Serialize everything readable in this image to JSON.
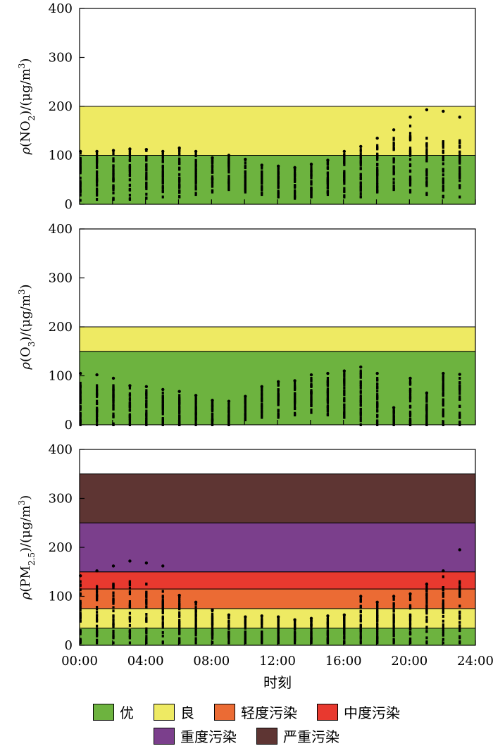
{
  "colors": {
    "优": "#6db33f",
    "良": "#eeea63",
    "轻度污染": "#eb6b34",
    "中度污染": "#e8392f",
    "重度污染": "#7b3f8c",
    "严重污染": "#5e3533",
    "point": "#000000"
  },
  "xaxis": {
    "label": "时刻",
    "ticks": [
      "00:00",
      "04:00",
      "08:00",
      "12:00",
      "16:00",
      "20:00",
      "24:00"
    ]
  },
  "legend": {
    "row1": [
      {
        "name": "优",
        "color_key": "优"
      },
      {
        "name": "良",
        "color_key": "良"
      },
      {
        "name": "轻度污染",
        "color_key": "轻度污染"
      },
      {
        "name": "中度污染",
        "color_key": "中度污染"
      }
    ],
    "row2": [
      {
        "name": "重度污染",
        "color_key": "重度污染"
      },
      {
        "name": "严重污染",
        "color_key": "严重污染"
      }
    ]
  },
  "chart_data": [
    {
      "type": "scatter",
      "ylabel": "ρ(NO2)/(μg/m3)",
      "ylabel_parts": {
        "pre": "ρ(NO",
        "sub": "2",
        "mid": ")/(μg/m",
        "sup": "3",
        "post": ")"
      },
      "ylim": [
        0,
        400
      ],
      "yticks": [
        "0",
        "100",
        "200",
        "300",
        "400"
      ],
      "xlim": [
        0,
        24
      ],
      "bands": [
        {
          "from": 0,
          "to": 100,
          "level": "优"
        },
        {
          "from": 100,
          "to": 200,
          "level": "良"
        }
      ],
      "hours": [
        0,
        1,
        2,
        3,
        4,
        5,
        6,
        7,
        8,
        9,
        10,
        11,
        12,
        13,
        14,
        15,
        16,
        17,
        18,
        19,
        20,
        21,
        22,
        23
      ],
      "series": [
        {
          "hour": 0,
          "min": 8,
          "max": 105,
          "top": 108
        },
        {
          "hour": 1,
          "min": 10,
          "max": 104,
          "top": 108
        },
        {
          "hour": 2,
          "min": 10,
          "max": 108,
          "top": 110
        },
        {
          "hour": 3,
          "min": 10,
          "max": 110,
          "top": 113
        },
        {
          "hour": 4,
          "min": 12,
          "max": 110,
          "top": 112
        },
        {
          "hour": 5,
          "min": 15,
          "max": 105,
          "top": 108
        },
        {
          "hour": 6,
          "min": 15,
          "max": 112,
          "top": 115
        },
        {
          "hour": 7,
          "min": 20,
          "max": 105,
          "top": 108
        },
        {
          "hour": 8,
          "min": 25,
          "max": 92,
          "top": 95
        },
        {
          "hour": 9,
          "min": 30,
          "max": 98,
          "top": 100
        },
        {
          "hour": 10,
          "min": 25,
          "max": 90,
          "top": 92
        },
        {
          "hour": 11,
          "min": 20,
          "max": 78,
          "top": 80
        },
        {
          "hour": 12,
          "min": 15,
          "max": 75,
          "top": 78
        },
        {
          "hour": 13,
          "min": 12,
          "max": 72,
          "top": 75
        },
        {
          "hour": 14,
          "min": 15,
          "max": 80,
          "top": 82
        },
        {
          "hour": 15,
          "min": 20,
          "max": 88,
          "top": 90
        },
        {
          "hour": 16,
          "min": 15,
          "max": 102,
          "top": 108
        },
        {
          "hour": 17,
          "min": 15,
          "max": 112,
          "top": 118
        },
        {
          "hour": 18,
          "min": 25,
          "max": 120,
          "top": 135
        },
        {
          "hour": 19,
          "min": 30,
          "max": 135,
          "top": 152
        },
        {
          "hour": 20,
          "min": 25,
          "max": 160,
          "top": 178
        },
        {
          "hour": 21,
          "min": 20,
          "max": 135,
          "top": 193
        },
        {
          "hour": 22,
          "min": 15,
          "max": 128,
          "top": 190
        },
        {
          "hour": 23,
          "min": 15,
          "max": 130,
          "top": 178
        }
      ]
    },
    {
      "type": "scatter",
      "ylabel": "ρ(O3)/(μg/m3)",
      "ylabel_parts": {
        "pre": "ρ(O",
        "sub": "3",
        "mid": ")/(μg/m",
        "sup": "3",
        "post": ")"
      },
      "ylim": [
        0,
        400
      ],
      "yticks": [
        "0",
        "100",
        "200",
        "300",
        "400"
      ],
      "xlim": [
        0,
        24
      ],
      "bands": [
        {
          "from": 0,
          "to": 150,
          "level": "优"
        },
        {
          "from": 150,
          "to": 200,
          "level": "良"
        }
      ],
      "series": [
        {
          "hour": 0,
          "min": 0,
          "max": 85,
          "top": 105
        },
        {
          "hour": 1,
          "min": 0,
          "max": 80,
          "top": 102
        },
        {
          "hour": 2,
          "min": 0,
          "max": 80,
          "top": 95
        },
        {
          "hour": 3,
          "min": 0,
          "max": 75,
          "top": 80
        },
        {
          "hour": 4,
          "min": 0,
          "max": 70,
          "top": 78
        },
        {
          "hour": 5,
          "min": 0,
          "max": 65,
          "top": 72
        },
        {
          "hour": 6,
          "min": 0,
          "max": 60,
          "top": 68
        },
        {
          "hour": 7,
          "min": 0,
          "max": 55,
          "top": 60
        },
        {
          "hour": 8,
          "min": 0,
          "max": 48,
          "top": 50
        },
        {
          "hour": 9,
          "min": 0,
          "max": 45,
          "top": 48
        },
        {
          "hour": 10,
          "min": 10,
          "max": 55,
          "top": 58
        },
        {
          "hour": 11,
          "min": 15,
          "max": 75,
          "top": 78
        },
        {
          "hour": 12,
          "min": 15,
          "max": 85,
          "top": 88
        },
        {
          "hour": 13,
          "min": 20,
          "max": 85,
          "top": 90
        },
        {
          "hour": 14,
          "min": 25,
          "max": 95,
          "top": 102
        },
        {
          "hour": 15,
          "min": 20,
          "max": 95,
          "top": 105
        },
        {
          "hour": 16,
          "min": 15,
          "max": 105,
          "top": 110
        },
        {
          "hour": 17,
          "min": 0,
          "max": 110,
          "top": 118
        },
        {
          "hour": 18,
          "min": 0,
          "max": 95,
          "top": 105
        },
        {
          "hour": 19,
          "min": 0,
          "max": 30,
          "top": 35
        },
        {
          "hour": 20,
          "min": 0,
          "max": 90,
          "top": 95
        },
        {
          "hour": 21,
          "min": 0,
          "max": 60,
          "top": 65
        },
        {
          "hour": 22,
          "min": 0,
          "max": 100,
          "top": 105
        },
        {
          "hour": 23,
          "min": 0,
          "max": 95,
          "top": 103
        }
      ]
    },
    {
      "type": "scatter",
      "ylabel": "ρ(PM2.5)/(μg/m3)",
      "ylabel_parts": {
        "pre": "ρ(PM",
        "sub": "2.5",
        "mid": ")/(μg/m",
        "sup": "3",
        "post": ")"
      },
      "ylim": [
        0,
        400
      ],
      "yticks": [
        "0",
        "100",
        "200",
        "300",
        "400"
      ],
      "xlim": [
        0,
        24
      ],
      "bands": [
        {
          "from": 0,
          "to": 35,
          "level": "优"
        },
        {
          "from": 35,
          "to": 75,
          "level": "良"
        },
        {
          "from": 75,
          "to": 115,
          "level": "轻度污染"
        },
        {
          "from": 115,
          "to": 150,
          "level": "中度污染"
        },
        {
          "from": 150,
          "to": 250,
          "level": "重度污染"
        },
        {
          "from": 250,
          "to": 350,
          "level": "严重污染"
        }
      ],
      "series": [
        {
          "hour": 0,
          "min": 5,
          "max": 130,
          "top": 142
        },
        {
          "hour": 1,
          "min": 5,
          "max": 120,
          "top": 152
        },
        {
          "hour": 2,
          "min": 5,
          "max": 125,
          "top": 162
        },
        {
          "hour": 3,
          "min": 5,
          "max": 130,
          "top": 172
        },
        {
          "hour": 4,
          "min": 5,
          "max": 125,
          "top": 168
        },
        {
          "hour": 5,
          "min": 5,
          "max": 110,
          "top": 162
        },
        {
          "hour": 6,
          "min": 5,
          "max": 100,
          "top": 102
        },
        {
          "hour": 7,
          "min": 5,
          "max": 85,
          "top": 88
        },
        {
          "hour": 8,
          "min": 5,
          "max": 70,
          "top": 72
        },
        {
          "hour": 9,
          "min": 5,
          "max": 60,
          "top": 62
        },
        {
          "hour": 10,
          "min": 5,
          "max": 55,
          "top": 58
        },
        {
          "hour": 11,
          "min": 5,
          "max": 58,
          "top": 60
        },
        {
          "hour": 12,
          "min": 5,
          "max": 55,
          "top": 58
        },
        {
          "hour": 13,
          "min": 5,
          "max": 50,
          "top": 52
        },
        {
          "hour": 14,
          "min": 5,
          "max": 52,
          "top": 55
        },
        {
          "hour": 15,
          "min": 5,
          "max": 55,
          "top": 60
        },
        {
          "hour": 16,
          "min": 5,
          "max": 60,
          "top": 62
        },
        {
          "hour": 17,
          "min": 5,
          "max": 95,
          "top": 100
        },
        {
          "hour": 18,
          "min": 5,
          "max": 85,
          "top": 88
        },
        {
          "hour": 19,
          "min": 5,
          "max": 95,
          "top": 100
        },
        {
          "hour": 20,
          "min": 5,
          "max": 100,
          "top": 105
        },
        {
          "hour": 21,
          "min": 5,
          "max": 120,
          "top": 125
        },
        {
          "hour": 22,
          "min": 5,
          "max": 140,
          "top": 152
        },
        {
          "hour": 23,
          "min": 5,
          "max": 130,
          "top": 195
        }
      ]
    }
  ]
}
